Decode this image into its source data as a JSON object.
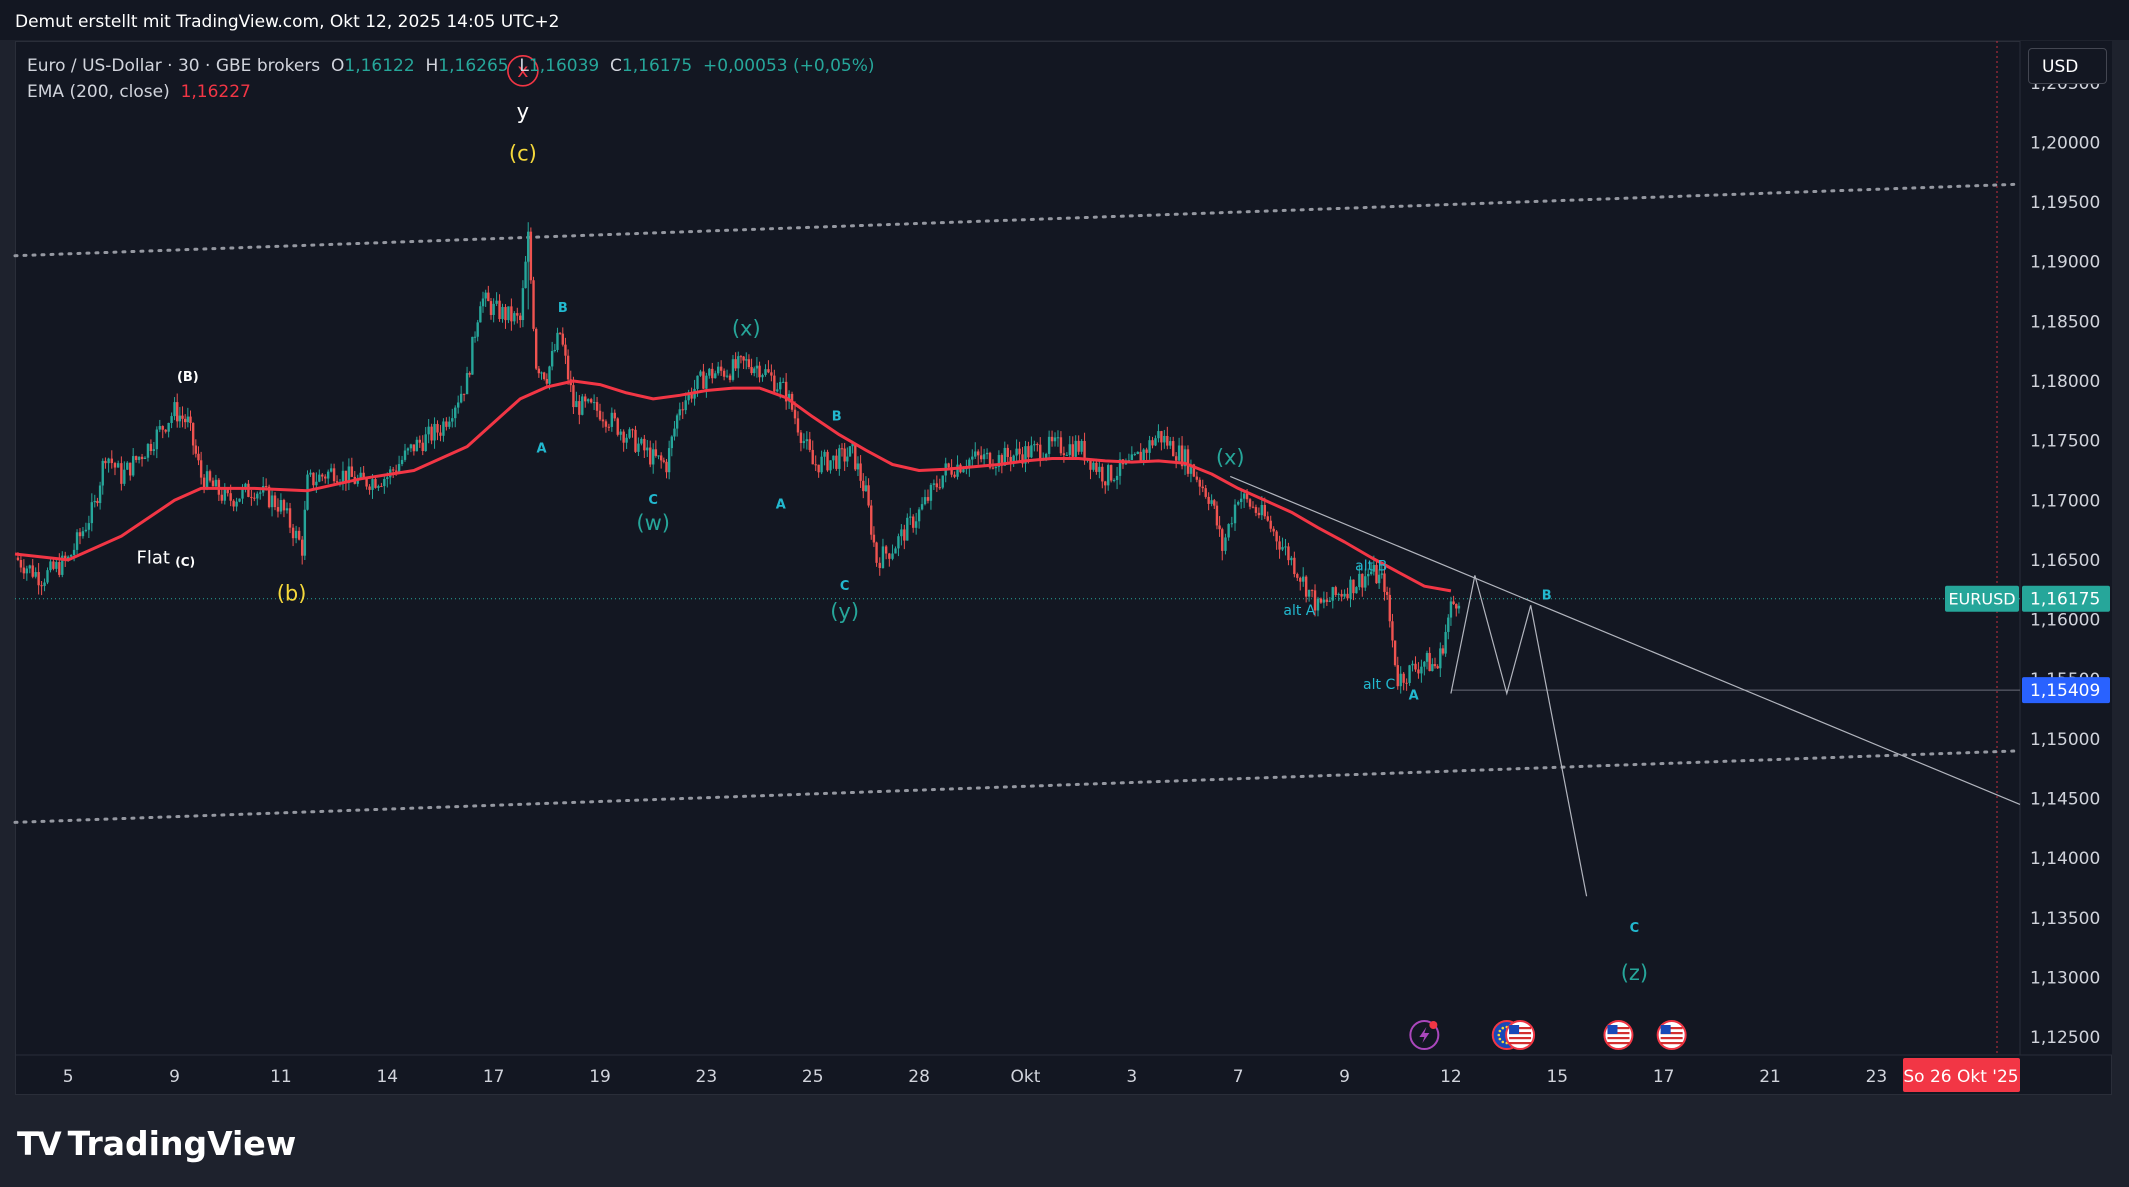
{
  "header": {
    "attribution": "Demut erstellt mit TradingView.com, Okt 12, 2025 14:05 UTC+2"
  },
  "legend": {
    "symbol": "Euro / US-Dollar · 30 · GBE brokers",
    "o_label": "O",
    "o_value": "1,16122",
    "h_label": "H",
    "h_value": "1,16265",
    "l_label": "L",
    "l_value": "1,16039",
    "c_label": "C",
    "c_value": "1,16175",
    "change": "+0,00053 (+0,05%)",
    "ema_label": "EMA (200, close)",
    "ema_value": "1,16227"
  },
  "currency_button": "USD",
  "brand": "TradingView",
  "colors": {
    "background": "#131722",
    "candle_up": "#26a69a",
    "candle_down": "#ef5350",
    "ema": "#f23645",
    "wave_cyan": "#22b8cf",
    "wave_teal": "#26a69a",
    "wave_yellow": "#f5d83b",
    "price_tag": "#26a69a",
    "low_tag": "#2962ff",
    "date_tag": "#f23645"
  },
  "chart_data": {
    "type": "line",
    "symbol_tag": "EURUSD",
    "current_price_label": "1,16175",
    "current_price": 1.16175,
    "marked_level_label": "1,15409",
    "marked_level": 1.15409,
    "date_marker_label": "So 26 Okt '25",
    "ylim": [
      1.1235,
      1.2085
    ],
    "y_ticks": [
      {
        "v": 1.205,
        "label": "1,20500"
      },
      {
        "v": 1.2,
        "label": "1,20000"
      },
      {
        "v": 1.195,
        "label": "1,19500"
      },
      {
        "v": 1.19,
        "label": "1,19000"
      },
      {
        "v": 1.185,
        "label": "1,18500"
      },
      {
        "v": 1.18,
        "label": "1,18000"
      },
      {
        "v": 1.175,
        "label": "1,17500"
      },
      {
        "v": 1.17,
        "label": "1,17000"
      },
      {
        "v": 1.165,
        "label": "1,16500"
      },
      {
        "v": 1.16,
        "label": "1,16000"
      },
      {
        "v": 1.155,
        "label": "1,15500"
      },
      {
        "v": 1.15,
        "label": "1,15000"
      },
      {
        "v": 1.145,
        "label": "1,14500"
      },
      {
        "v": 1.14,
        "label": "1,14000"
      },
      {
        "v": 1.135,
        "label": "1,13500"
      },
      {
        "v": 1.13,
        "label": "1,13000"
      },
      {
        "v": 1.125,
        "label": "1,12500"
      }
    ],
    "x_ticks": [
      {
        "d": 2,
        "label": "5"
      },
      {
        "d": 6,
        "label": "9"
      },
      {
        "d": 10,
        "label": "11"
      },
      {
        "d": 14,
        "label": "14"
      },
      {
        "d": 18,
        "label": "17"
      },
      {
        "d": 22,
        "label": "19"
      },
      {
        "d": 26,
        "label": "23"
      },
      {
        "d": 30,
        "label": "25"
      },
      {
        "d": 34,
        "label": "28"
      },
      {
        "d": 38,
        "label": "Okt"
      },
      {
        "d": 42,
        "label": "3"
      },
      {
        "d": 46,
        "label": "7"
      },
      {
        "d": 50,
        "label": "9"
      },
      {
        "d": 54,
        "label": "12"
      },
      {
        "d": 58,
        "label": "15"
      },
      {
        "d": 62,
        "label": "17"
      },
      {
        "d": 66,
        "label": "21"
      },
      {
        "d": 70,
        "label": "23"
      }
    ],
    "xlim": [
      0,
      75.4
    ],
    "price_path": [
      [
        0,
        1.1652
      ],
      [
        1,
        1.1635
      ],
      [
        2,
        1.165
      ],
      [
        3,
        1.1695
      ],
      [
        3.4,
        1.174
      ],
      [
        4,
        1.172
      ],
      [
        5,
        1.1745
      ],
      [
        6,
        1.1775
      ],
      [
        6.5,
        1.1765
      ],
      [
        7,
        1.172
      ],
      [
        8,
        1.17
      ],
      [
        9,
        1.171
      ],
      [
        10,
        1.1695
      ],
      [
        10.8,
        1.166
      ],
      [
        11,
        1.1715
      ],
      [
        12,
        1.1725
      ],
      [
        13,
        1.1715
      ],
      [
        14,
        1.172
      ],
      [
        15,
        1.1745
      ],
      [
        16,
        1.176
      ],
      [
        17,
        1.18
      ],
      [
        17.5,
        1.187
      ],
      [
        18,
        1.186
      ],
      [
        19,
        1.185
      ],
      [
        19.3,
        1.192
      ],
      [
        19.6,
        1.1815
      ],
      [
        20,
        1.1805
      ],
      [
        20.5,
        1.184
      ],
      [
        21,
        1.178
      ],
      [
        22,
        1.1775
      ],
      [
        23,
        1.1755
      ],
      [
        24,
        1.1735
      ],
      [
        24.5,
        1.173
      ],
      [
        25,
        1.178
      ],
      [
        26,
        1.1805
      ],
      [
        27,
        1.181
      ],
      [
        27.5,
        1.1815
      ],
      [
        28,
        1.1812
      ],
      [
        29,
        1.179
      ],
      [
        30,
        1.173
      ],
      [
        31,
        1.1735
      ],
      [
        31.5,
        1.174
      ],
      [
        32,
        1.1705
      ],
      [
        32.4,
        1.165
      ],
      [
        33,
        1.166
      ],
      [
        34,
        1.169
      ],
      [
        35,
        1.1725
      ],
      [
        36,
        1.1735
      ],
      [
        37,
        1.1735
      ],
      [
        38,
        1.174
      ],
      [
        39,
        1.1745
      ],
      [
        40,
        1.1745
      ],
      [
        41,
        1.172
      ],
      [
        42,
        1.173
      ],
      [
        43,
        1.1755
      ],
      [
        44,
        1.1735
      ],
      [
        45,
        1.17
      ],
      [
        45.4,
        1.166
      ],
      [
        46,
        1.1705
      ],
      [
        47,
        1.1685
      ],
      [
        48,
        1.165
      ],
      [
        49,
        1.161
      ],
      [
        50,
        1.1625
      ],
      [
        51,
        1.164
      ],
      [
        51.5,
        1.163
      ],
      [
        52,
        1.155
      ],
      [
        53,
        1.1565
      ],
      [
        53.5,
        1.156
      ],
      [
        54,
        1.161
      ],
      [
        54.3,
        1.162
      ]
    ],
    "ema_path": [
      [
        0,
        1.1655
      ],
      [
        2,
        1.165
      ],
      [
        4,
        1.167
      ],
      [
        6,
        1.17
      ],
      [
        7,
        1.171
      ],
      [
        9,
        1.171
      ],
      [
        11,
        1.1708
      ],
      [
        13,
        1.1718
      ],
      [
        15,
        1.1725
      ],
      [
        17,
        1.1745
      ],
      [
        18,
        1.1765
      ],
      [
        19,
        1.1785
      ],
      [
        20,
        1.1795
      ],
      [
        21,
        1.18
      ],
      [
        22,
        1.1797
      ],
      [
        23,
        1.179
      ],
      [
        24,
        1.1785
      ],
      [
        25,
        1.1788
      ],
      [
        26,
        1.1792
      ],
      [
        27,
        1.1794
      ],
      [
        28,
        1.1794
      ],
      [
        29,
        1.1786
      ],
      [
        30,
        1.177
      ],
      [
        31,
        1.1755
      ],
      [
        32,
        1.1742
      ],
      [
        33,
        1.173
      ],
      [
        34,
        1.1725
      ],
      [
        35,
        1.1726
      ],
      [
        36,
        1.1728
      ],
      [
        37,
        1.173
      ],
      [
        38,
        1.1733
      ],
      [
        39,
        1.1735
      ],
      [
        40,
        1.1735
      ],
      [
        41,
        1.1733
      ],
      [
        42,
        1.1732
      ],
      [
        43,
        1.1733
      ],
      [
        44,
        1.1731
      ],
      [
        45,
        1.1722
      ],
      [
        46,
        1.171
      ],
      [
        47,
        1.17
      ],
      [
        48,
        1.169
      ],
      [
        49,
        1.1677
      ],
      [
        50,
        1.1665
      ],
      [
        51,
        1.1652
      ],
      [
        52,
        1.164
      ],
      [
        53,
        1.1628
      ],
      [
        54,
        1.1624
      ]
    ],
    "upper_channel": [
      [
        0,
        1.1905
      ],
      [
        75.4,
        1.1965
      ]
    ],
    "lower_channel": [
      [
        0,
        1.143
      ],
      [
        75.4,
        1.149
      ]
    ],
    "trendline": [
      [
        45.7,
        1.172
      ],
      [
        75.4,
        1.1445
      ]
    ],
    "projection": [
      [
        54,
        1.1538
      ],
      [
        54.9,
        1.1637
      ],
      [
        56.1,
        1.1538
      ],
      [
        57,
        1.1612
      ],
      [
        59.1,
        1.1368
      ]
    ],
    "wave_labels": [
      {
        "d": 6.5,
        "v": 1.18,
        "text": "(B)",
        "color": "#ffffff",
        "size": 13,
        "bold": true
      },
      {
        "d": 5.2,
        "v": 1.1647,
        "text": "Flat",
        "color": "#ffffff",
        "size": 18,
        "bold": false
      },
      {
        "d": 6.4,
        "v": 1.1645,
        "text": "(C)",
        "color": "#ffffff",
        "size": 12,
        "bold": true
      },
      {
        "d": 10.4,
        "v": 1.1616,
        "text": "(b)",
        "color": "#f5d83b",
        "size": 21,
        "bold": false
      },
      {
        "d": 19.1,
        "v": 1.2055,
        "text": "x",
        "color": "#f23645",
        "size": 19,
        "bold": false
      },
      {
        "d": 19.1,
        "v": 1.202,
        "text": "y",
        "color": "#ffffff",
        "size": 21,
        "bold": false
      },
      {
        "d": 19.1,
        "v": 1.1985,
        "text": "(c)",
        "color": "#f5d83b",
        "size": 21,
        "bold": false
      },
      {
        "d": 20.6,
        "v": 1.1858,
        "text": "B",
        "color": "#22b8cf",
        "size": 13,
        "bold": true
      },
      {
        "d": 19.8,
        "v": 1.174,
        "text": "A",
        "color": "#22b8cf",
        "size": 13,
        "bold": true
      },
      {
        "d": 24.0,
        "v": 1.1697,
        "text": "C",
        "color": "#22b8cf",
        "size": 13,
        "bold": true
      },
      {
        "d": 24.0,
        "v": 1.1675,
        "text": "(w)",
        "color": "#26a69a",
        "size": 21,
        "bold": false
      },
      {
        "d": 27.5,
        "v": 1.1838,
        "text": "(x)",
        "color": "#26a69a",
        "size": 21,
        "bold": false
      },
      {
        "d": 30.9,
        "v": 1.1767,
        "text": "B",
        "color": "#22b8cf",
        "size": 13,
        "bold": true
      },
      {
        "d": 28.8,
        "v": 1.1693,
        "text": "A",
        "color": "#22b8cf",
        "size": 13,
        "bold": true
      },
      {
        "d": 31.2,
        "v": 1.1625,
        "text": "C",
        "color": "#22b8cf",
        "size": 13,
        "bold": true
      },
      {
        "d": 31.2,
        "v": 1.1601,
        "text": "(y)",
        "color": "#26a69a",
        "size": 21,
        "bold": false
      },
      {
        "d": 45.7,
        "v": 1.173,
        "text": "(x)",
        "color": "#26a69a",
        "size": 21,
        "bold": false
      },
      {
        "d": 51.0,
        "v": 1.1641,
        "text": "alt B",
        "color": "#22b8cf",
        "size": 14,
        "bold": false
      },
      {
        "d": 48.3,
        "v": 1.1604,
        "text": "alt A",
        "color": "#22b8cf",
        "size": 14,
        "bold": false
      },
      {
        "d": 51.3,
        "v": 1.1542,
        "text": "alt C",
        "color": "#22b8cf",
        "size": 14,
        "bold": false
      },
      {
        "d": 52.6,
        "v": 1.1533,
        "text": "A",
        "color": "#22b8cf",
        "size": 13,
        "bold": true
      },
      {
        "d": 57.6,
        "v": 1.1617,
        "text": "B",
        "color": "#22b8cf",
        "size": 13,
        "bold": true
      },
      {
        "d": 60.9,
        "v": 1.1338,
        "text": "C",
        "color": "#22b8cf",
        "size": 13,
        "bold": true
      },
      {
        "d": 60.9,
        "v": 1.1298,
        "text": "(z)",
        "color": "#26a69a",
        "size": 21,
        "bold": false
      }
    ],
    "event_icons": [
      {
        "d": 53.0,
        "name": "flash-event-icon"
      },
      {
        "d": 56.1,
        "name": "eu-flag-icon"
      },
      {
        "d": 56.6,
        "name": "us-flag-icon"
      },
      {
        "d": 60.3,
        "name": "us-flag-icon"
      },
      {
        "d": 62.3,
        "name": "us-flag-icon"
      }
    ]
  }
}
